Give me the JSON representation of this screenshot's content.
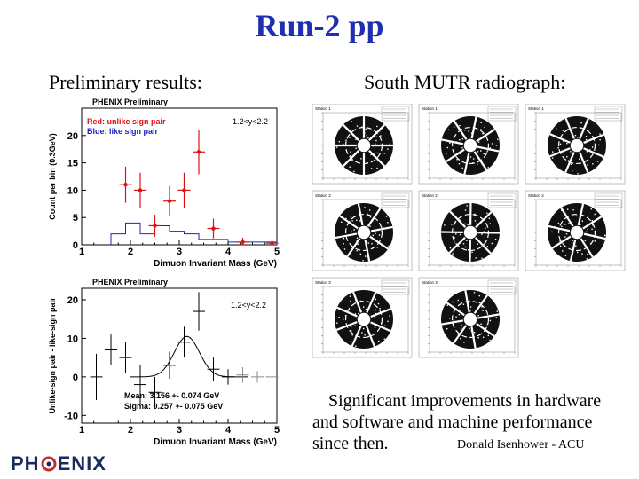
{
  "slide": {
    "title": "Run-2 pp",
    "left_heading": "Preliminary results:",
    "right_heading": "South MUTR radiograph:",
    "caption_line1": "Significant improvements in hardware",
    "caption_line2": "and software  and machine performance",
    "caption_line3": "since then.",
    "author": "Donald Isenhower - ACU",
    "logo_text_a": "PH",
    "logo_text_b": "ENIX"
  },
  "chart_data": [
    {
      "type": "scatter",
      "title": "PHENIX Preliminary",
      "rapidity_label": "1.2<y<2.2",
      "xlabel": "Dimuon Invariant Mass (GeV)",
      "ylabel": "Count per bin (0.3GeV)",
      "xlim": [
        1,
        5
      ],
      "ylim": [
        0,
        25
      ],
      "xticks": [
        "1",
        "2",
        "3",
        "4",
        "5"
      ],
      "yticks": [
        "0",
        "5",
        "10",
        "15",
        "20"
      ],
      "legend": [
        "Red: unlike sign pair",
        "Blue: like sign pair"
      ],
      "colors": {
        "unlike": "#e01010",
        "like": "#2020c0"
      },
      "series": [
        {
          "name": "Red: unlike sign pair",
          "x": [
            1.9,
            2.2,
            2.5,
            2.8,
            3.1,
            3.4,
            3.7,
            4.3,
            4.9
          ],
          "y": [
            11.0,
            10.0,
            3.5,
            8.0,
            10.0,
            17.0,
            3.0,
            0.5,
            0.3
          ],
          "err": [
            3.3,
            3.2,
            2.0,
            2.8,
            3.2,
            4.1,
            1.8,
            0.8,
            0.6
          ]
        },
        {
          "name": "Blue: like sign pair",
          "bin_edges": [
            1.6,
            1.9,
            2.2,
            2.5,
            2.8,
            3.1,
            3.4,
            3.7,
            4.0,
            4.3,
            4.6,
            5.0
          ],
          "values": [
            2.0,
            4.0,
            2.0,
            3.5,
            2.5,
            2.0,
            1.0,
            1.0,
            0.5,
            0.5,
            0.5
          ]
        }
      ]
    },
    {
      "type": "scatter",
      "title": "PHENIX Preliminary",
      "rapidity_label": "1.2<y<2.2",
      "xlabel": "Dimuon Invariant Mass (GeV)",
      "ylabel": "Unlike-sign pair - like-sign pair",
      "xlim": [
        1,
        5
      ],
      "ylim": [
        -12,
        23
      ],
      "xticks": [
        "1",
        "2",
        "3",
        "4",
        "5"
      ],
      "yticks": [
        "-10",
        "0",
        "10",
        "20"
      ],
      "fit_mean_label": "Mean: 3.156 +- 0.074 GeV",
      "fit_sigma_label": "Sigma: 0.257 +- 0.075 GeV",
      "fit": {
        "mean": 3.156,
        "sigma": 0.257,
        "amplitude": 10.5
      },
      "series": [
        {
          "name": "",
          "x": [
            1.3,
            1.6,
            1.9,
            2.2,
            2.5,
            2.8,
            3.1,
            3.4,
            3.7,
            4.0,
            4.3,
            4.6,
            4.9
          ],
          "y": [
            0.0,
            7.0,
            5.0,
            -2.0,
            -4.0,
            3.0,
            9.0,
            17.0,
            2.0,
            0.0,
            0.5,
            0.0,
            0.0
          ],
          "err": [
            6.0,
            4.0,
            4.0,
            5.0,
            4.0,
            3.5,
            4.0,
            5.0,
            3.0,
            2.0,
            2.0,
            1.5,
            1.5
          ]
        }
      ]
    }
  ],
  "radiograph_panels": [
    {
      "label": "Station 1"
    },
    {
      "label": "Station 1"
    },
    {
      "label": "Station 1"
    },
    {
      "label": "Station 2"
    },
    {
      "label": "Station 2"
    },
    {
      "label": "Station 2"
    },
    {
      "label": "Station 3"
    },
    {
      "label": "Station 3"
    }
  ]
}
